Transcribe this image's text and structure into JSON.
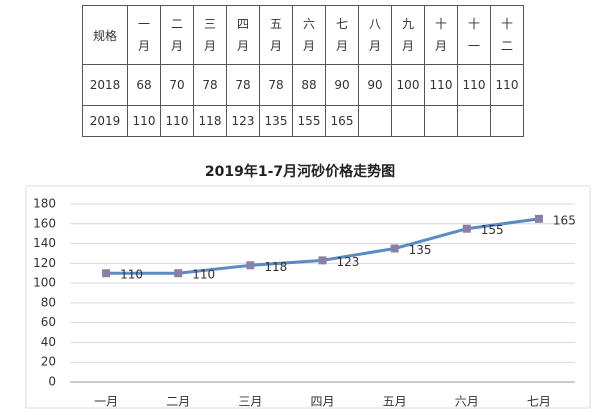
{
  "table": {
    "header": [
      "规格",
      "一月",
      "二月",
      "三月",
      "四月",
      "五月",
      "六月",
      "七月",
      "八月",
      "九月",
      "十月",
      "十一",
      "十二"
    ],
    "rows": [
      [
        "2018",
        68,
        70,
        78,
        78,
        78,
        88,
        90,
        90,
        100,
        110,
        110,
        110
      ],
      [
        "2019",
        110,
        110,
        118,
        123,
        135,
        155,
        165
      ]
    ]
  },
  "chart_data": {
    "type": "line",
    "title": "2019年1-7月河砂价格走势图",
    "categories": [
      "一月",
      "二月",
      "三月",
      "四月",
      "五月",
      "六月",
      "七月"
    ],
    "values": [
      110,
      110,
      118,
      123,
      135,
      155,
      165
    ],
    "color": "#5b8ac4",
    "marker_color": "#8c7fa6",
    "ylim": [
      0,
      180
    ],
    "yticks": [
      0,
      20,
      40,
      60,
      80,
      100,
      120,
      140,
      160,
      180
    ],
    "grid": true
  }
}
